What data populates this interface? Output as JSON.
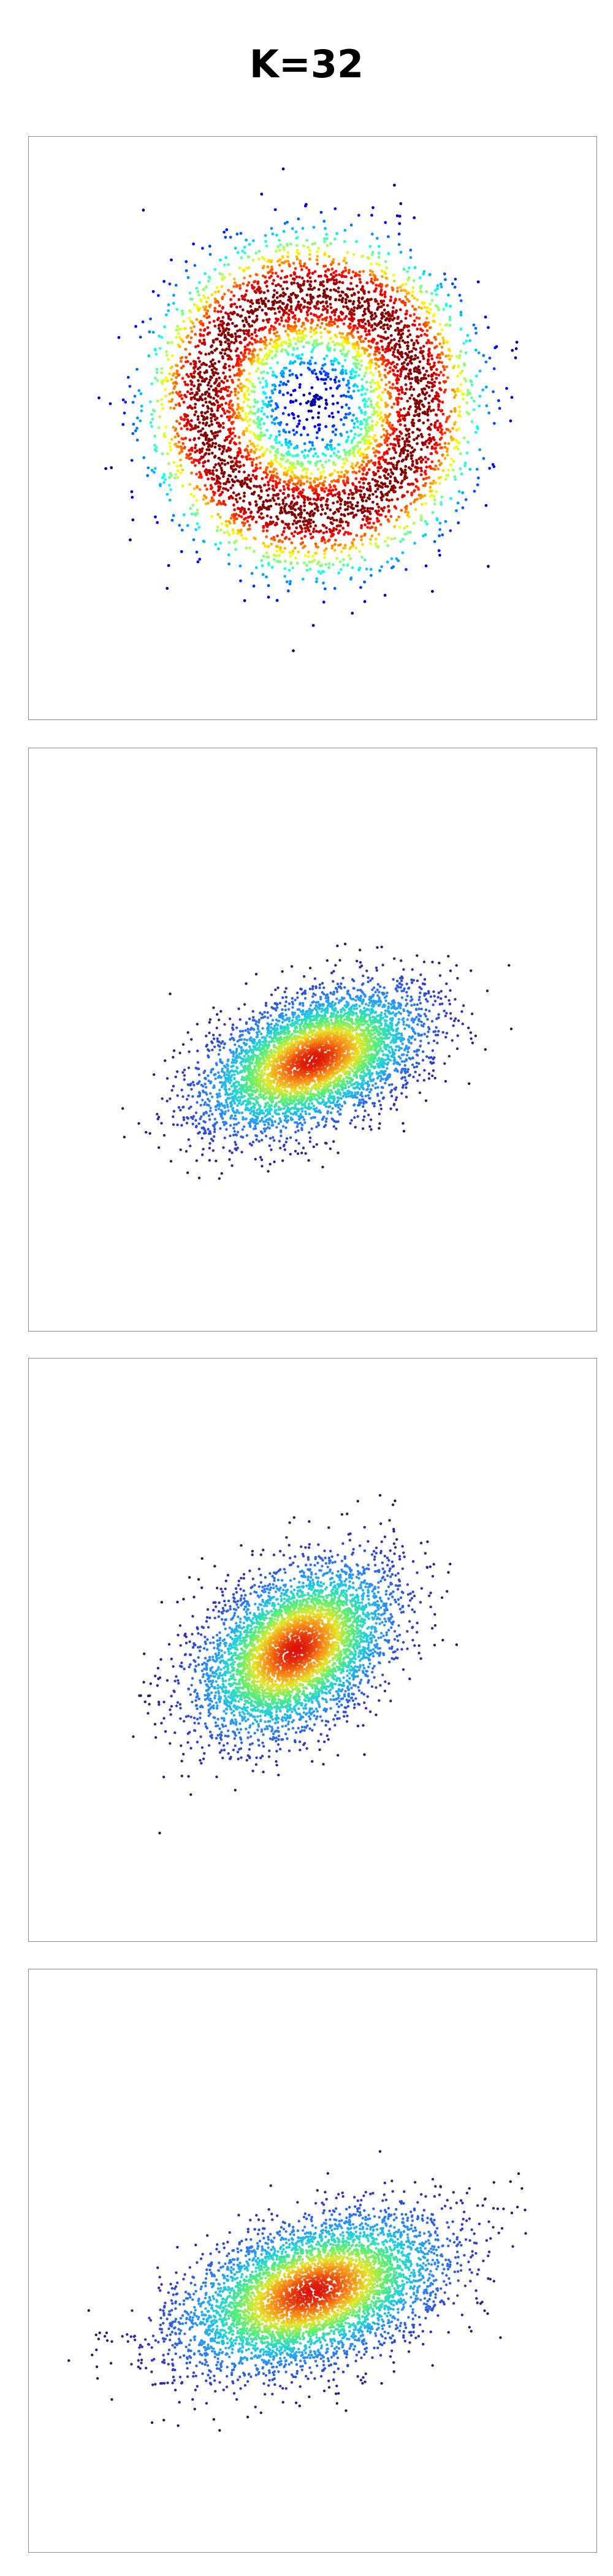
{
  "figure": {
    "title": "K=32"
  },
  "chart_data": [
    {
      "type": "scatter",
      "title": "",
      "xlabel": "",
      "ylabel": "",
      "xlim": [
        -4.2,
        4.2
      ],
      "ylim": [
        -4.2,
        4.2
      ],
      "grid": false,
      "colormap": "jet",
      "color_by": "density",
      "axes_visible": false,
      "distribution": "ring",
      "params": {
        "cx": 0.0,
        "cy": 0.35,
        "radius": 1.6,
        "spread": 0.55,
        "n": 5200,
        "seed": 11
      }
    },
    {
      "type": "scatter",
      "title": "",
      "xlabel": "",
      "ylabel": "",
      "xlim": [
        -4.2,
        4.2
      ],
      "ylim": [
        -4.2,
        4.2
      ],
      "grid": false,
      "colormap": "turbo",
      "color_by": "density",
      "axes_visible": false,
      "distribution": "gaussian",
      "params": {
        "cx": 0.0,
        "cy": -0.3,
        "sx": 0.85,
        "sy": 0.42,
        "angle_deg": 22,
        "n": 5200,
        "seed": 23
      }
    },
    {
      "type": "scatter",
      "title": "",
      "xlabel": "",
      "ylabel": "",
      "xlim": [
        -4.2,
        4.2
      ],
      "ylim": [
        -4.2,
        4.2
      ],
      "grid": false,
      "colormap": "turbo",
      "color_by": "density",
      "axes_visible": false,
      "distribution": "gaussian",
      "params": {
        "cx": -0.25,
        "cy": 0.0,
        "sx": 0.8,
        "sy": 0.5,
        "angle_deg": 35,
        "n": 5200,
        "seed": 37
      }
    },
    {
      "type": "scatter",
      "title": "",
      "xlabel": "",
      "ylabel": "",
      "xlim": [
        -4.2,
        4.2
      ],
      "ylim": [
        -4.2,
        4.2
      ],
      "grid": false,
      "colormap": "turbo",
      "color_by": "density",
      "axes_visible": false,
      "distribution": "gaussian",
      "params": {
        "cx": 0.0,
        "cy": -0.45,
        "sx": 1.0,
        "sy": 0.48,
        "angle_deg": 18,
        "n": 5600,
        "seed": 53
      }
    }
  ]
}
